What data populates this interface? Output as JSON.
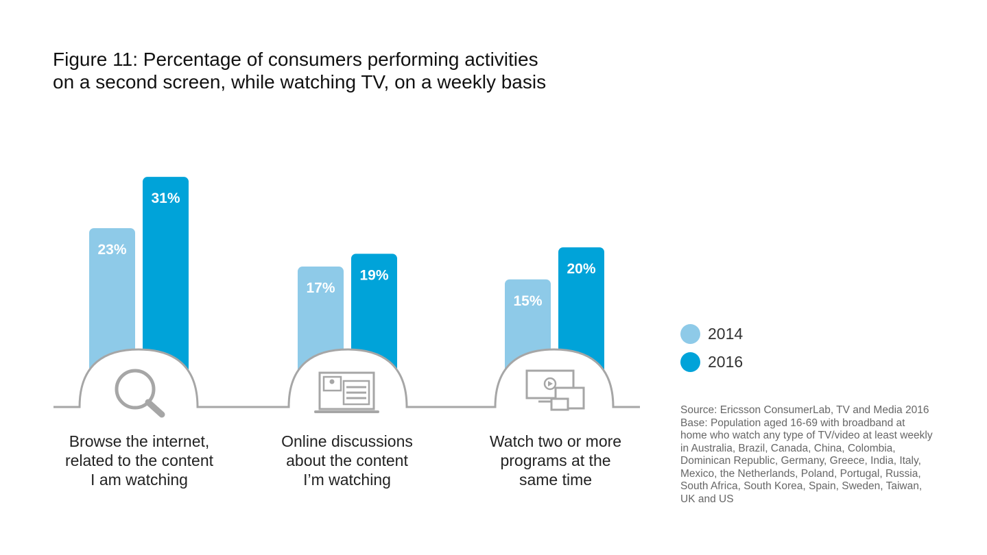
{
  "title": {
    "line1": "Figure 11: Percentage of consumers performing activities",
    "line2": "on a second screen, while watching TV, on a weekly basis"
  },
  "chart_data": {
    "type": "bar",
    "title": "Figure 11: Percentage of consumers performing activities on a second screen, while watching TV, on a weekly basis",
    "categories": [
      "Browse the internet, related to the content I am watching",
      "Online discussions about the content I’m watching",
      "Watch two or more programs at the same time"
    ],
    "series": [
      {
        "name": "2014",
        "values": [
          23,
          17,
          15
        ],
        "labels": [
          "23%",
          "17%",
          "15%"
        ],
        "color": "#8ecae8"
      },
      {
        "name": "2016",
        "values": [
          31,
          19,
          20
        ],
        "labels": [
          "31%",
          "19%",
          "20%"
        ],
        "color": "#00a3d9"
      }
    ],
    "unit": "%",
    "ylim": [
      0,
      33
    ],
    "grid": false,
    "legend_position": "right"
  },
  "categories": [
    {
      "lines": [
        "Browse the internet,",
        "related to the content",
        "I am watching"
      ],
      "icon": "magnifier-icon"
    },
    {
      "lines": [
        "Online discussions",
        "about the content",
        "I’m watching"
      ],
      "icon": "laptop-chat-icon"
    },
    {
      "lines": [
        "Watch two or more",
        "programs at the",
        "same time"
      ],
      "icon": "multi-screen-icon"
    }
  ],
  "legend": [
    {
      "label": "2014",
      "color": "#8ecae8"
    },
    {
      "label": "2016",
      "color": "#00a3d9"
    }
  ],
  "source": {
    "lines": [
      "Source: Ericsson ConsumerLab, TV and Media 2016",
      "Base: Population aged 16-69 with broadband at",
      "home who watch any type of TV/video at least weekly",
      "in Australia,  Brazil, Canada, China, Colombia,",
      "Dominican Republic, Germany, Greece, India, Italy,",
      "Mexico, the Netherlands, Poland, Portugal, Russia,",
      "South Africa, South Korea, Spain, Sweden, Taiwan,",
      "UK and US"
    ]
  },
  "colors": {
    "series_2014": "#8ecae8",
    "series_2016": "#00a3d9",
    "icon_stroke": "#a6a6a6"
  }
}
